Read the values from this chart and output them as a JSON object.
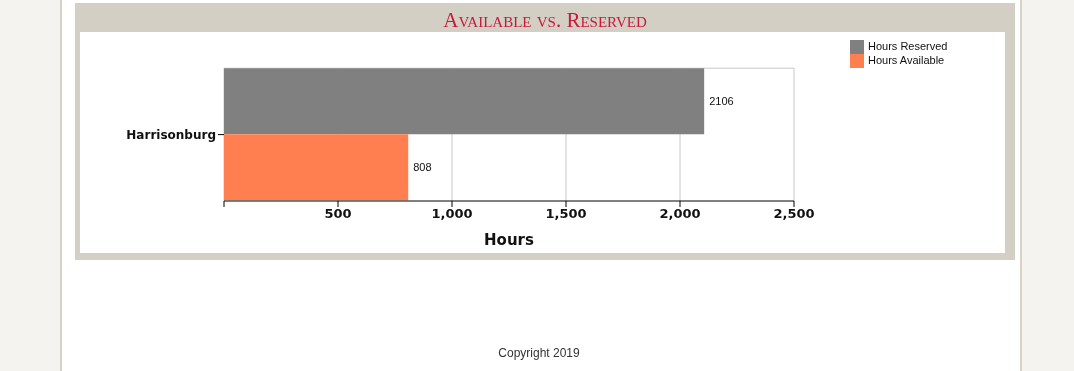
{
  "chart_data": {
    "type": "bar",
    "orientation": "horizontal",
    "title": "Available vs. Reserved",
    "xlabel": "Hours",
    "categories": [
      "Harrisonburg"
    ],
    "series": [
      {
        "name": "Hours Reserved",
        "color": "#808080",
        "values": [
          2106
        ]
      },
      {
        "name": "Hours Available",
        "color": "#ff7f50",
        "values": [
          808
        ]
      }
    ],
    "xlim": [
      0,
      2500
    ],
    "xticks": [
      {
        "value": 0,
        "label": null
      },
      500,
      {
        "value": 1000,
        "label": "1,000"
      },
      {
        "value": 1500,
        "label": "1,500"
      },
      {
        "value": 2000,
        "label": "2,000"
      },
      {
        "value": 2500,
        "label": "2,500"
      }
    ],
    "grid": "x",
    "legend": "top right",
    "data_labels": true,
    "annotations": [
      "Copyright 2019"
    ]
  }
}
